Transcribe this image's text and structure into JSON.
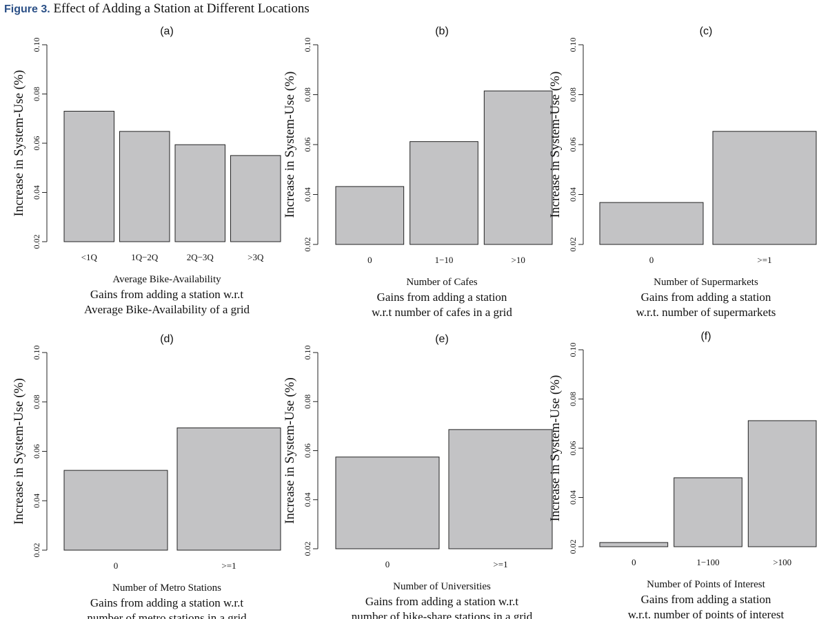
{
  "figure": {
    "label": "Figure 3.",
    "title": "Effect of Adding a Station at Different Locations"
  },
  "colors": {
    "bar_fill": "#c3c3c5",
    "bar_stroke": "#222222",
    "axis": "#222222",
    "figure_label": "#2a4f86"
  },
  "chart_data": [
    {
      "type": "bar",
      "panel": "(a)",
      "categories": [
        "<1Q",
        "1Q−2Q",
        "2Q−3Q",
        ">3Q"
      ],
      "values": [
        0.073,
        0.0648,
        0.0594,
        0.055
      ],
      "xlabel": "Average Bike-Availability",
      "caption": [
        "Gains from adding a station w.r.t",
        "Average Bike-Availability of a grid"
      ],
      "ylabel": "Increase in System-Use (%)",
      "ylim": [
        0.02,
        0.1
      ],
      "yticks": [
        "0.02",
        "0.04",
        "0.06",
        "0.08",
        "0.10"
      ]
    },
    {
      "type": "bar",
      "panel": "(b)",
      "categories": [
        "0",
        "1−10",
        ">10"
      ],
      "values": [
        0.0432,
        0.0612,
        0.0815
      ],
      "xlabel": "Number of Cafes",
      "caption": [
        "Gains from adding a station",
        "w.r.t number of cafes in a grid"
      ],
      "ylabel": "Increase in System-Use (%)",
      "ylim": [
        0.02,
        0.1
      ],
      "yticks": [
        "0.02",
        "0.04",
        "0.06",
        "0.08",
        "0.10"
      ]
    },
    {
      "type": "bar",
      "panel": "(c)",
      "categories": [
        "0",
        ">=1"
      ],
      "values": [
        0.0368,
        0.0653
      ],
      "xlabel": "Number of Supermarkets",
      "caption": [
        "Gains from adding a station",
        "w.r.t. number of supermarkets"
      ],
      "ylabel": "Increase in System-Use (%)",
      "ylim": [
        0.02,
        0.1
      ],
      "yticks": [
        "0.02",
        "0.04",
        "0.06",
        "0.08",
        "0.10"
      ]
    },
    {
      "type": "bar",
      "panel": "(d)",
      "categories": [
        "0",
        ">=1"
      ],
      "values": [
        0.0523,
        0.0695
      ],
      "xlabel": "Number of Metro Stations",
      "caption": [
        "Gains from adding a station w.r.t",
        "number of metro stations in a grid"
      ],
      "ylabel": "Increase in System-Use (%)",
      "ylim": [
        0.02,
        0.1
      ],
      "yticks": [
        "0.02",
        "0.04",
        "0.06",
        "0.08",
        "0.10"
      ]
    },
    {
      "type": "bar",
      "panel": "(e)",
      "categories": [
        "0",
        ">=1"
      ],
      "values": [
        0.0574,
        0.0686
      ],
      "xlabel": "Number of Universities",
      "caption": [
        "Gains from adding a station w.r.t",
        "number of bike-share stations in a grid"
      ],
      "ylabel": "Increase in System-Use (%)",
      "ylim": [
        0.02,
        0.1
      ],
      "yticks": [
        "0.02",
        "0.04",
        "0.06",
        "0.08",
        "0.10"
      ]
    },
    {
      "type": "bar",
      "panel": "(f)",
      "categories": [
        "0",
        "1−100",
        ">100"
      ],
      "values": [
        0.0217,
        0.048,
        0.0712
      ],
      "xlabel": "Number of Points of Interest",
      "caption": [
        "Gains from adding a station",
        "w.r.t. number of points of interest"
      ],
      "ylabel": "Increase in System-Use (%)",
      "ylim": [
        0.02,
        0.1
      ],
      "yticks": [
        "0.02",
        "0.04",
        "0.06",
        "0.08",
        "0.10"
      ]
    }
  ]
}
